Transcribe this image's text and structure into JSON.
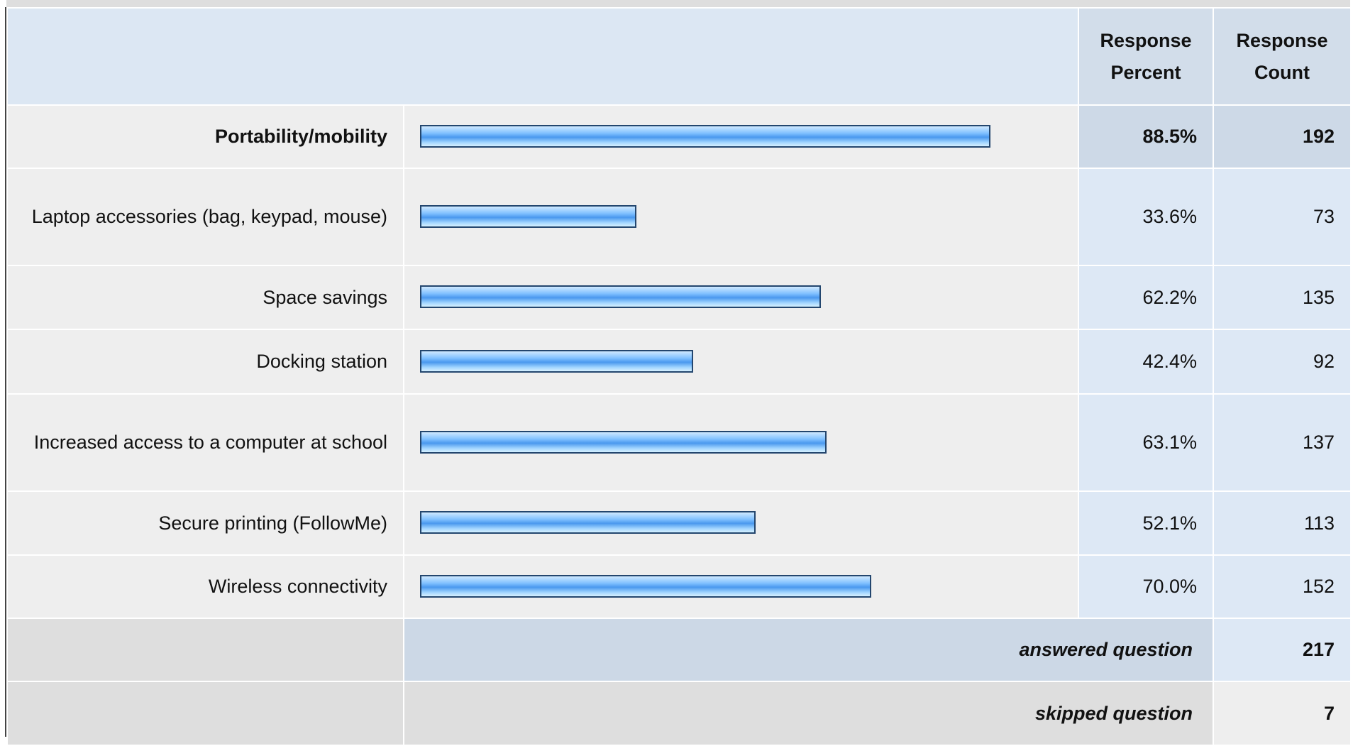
{
  "table": {
    "header": [
      "Response Percent",
      "Response Count"
    ],
    "rows": [
      {
        "label": "Portability/mobility",
        "percent": 88.5,
        "percent_label": "88.5%",
        "count": 192
      },
      {
        "label": "Laptop accessories (bag, keypad, mouse)",
        "percent": 33.6,
        "percent_label": "33.6%",
        "count": 73
      },
      {
        "label": "Space savings",
        "percent": 62.2,
        "percent_label": "62.2%",
        "count": 135
      },
      {
        "label": "Docking station",
        "percent": 42.4,
        "percent_label": "42.4%",
        "count": 92
      },
      {
        "label": "Increased access to a computer at school",
        "percent": 63.1,
        "percent_label": "63.1%",
        "count": 137
      },
      {
        "label": "Secure printing (FollowMe)",
        "percent": 52.1,
        "percent_label": "52.1%",
        "count": 113
      },
      {
        "label": "Wireless connectivity",
        "percent": 70.0,
        "percent_label": "70.0%",
        "count": 152
      }
    ],
    "answered": {
      "label": "answered question",
      "count": 217
    },
    "skipped": {
      "label": "skipped question",
      "count": 7
    }
  }
}
